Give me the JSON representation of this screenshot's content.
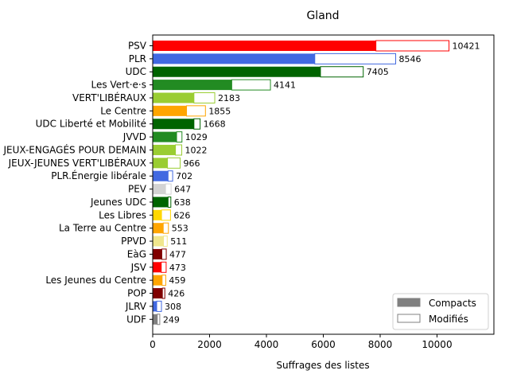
{
  "chart_data": {
    "type": "bar",
    "orientation": "horizontal",
    "stacked": true,
    "title": "Gland",
    "xlabel": "Suffrages des listes",
    "ylabel": "",
    "xlim": [
      0,
      12000
    ],
    "xticks": [
      0,
      2000,
      4000,
      6000,
      8000,
      10000
    ],
    "grid": false,
    "legend_position": "bottom-right",
    "legend": [
      {
        "name": "Compacts",
        "style": "filled",
        "color": "#808080"
      },
      {
        "name": "Modifiés",
        "style": "outline",
        "color": "#808080"
      }
    ],
    "categories": [
      "PSV",
      "PLR",
      "UDC",
      "Les Vert·e·s",
      "VERT'LIBÉRAUX",
      "Le Centre",
      "UDC Liberté et Mobilité",
      "JVVD",
      "JEUX-ENGAGÉS POUR DEMAIN",
      "JEUX-JEUNES VERT'LIBÉRAUX",
      "PLR.Énergie libérale",
      "PEV",
      "Jeunes UDC",
      "Les Libres",
      "La Terre au Centre",
      "PPVD",
      "EàG",
      "JSV",
      "Les Jeunes du Centre",
      "POP",
      "JLRV",
      "UDF"
    ],
    "compacts": [
      7850,
      5700,
      5900,
      2780,
      1450,
      1190,
      1450,
      840,
      800,
      520,
      540,
      450,
      540,
      310,
      370,
      380,
      320,
      300,
      330,
      340,
      140,
      160
    ],
    "totals": [
      10421,
      8546,
      7405,
      4141,
      2183,
      1855,
      1668,
      1029,
      1022,
      966,
      702,
      647,
      638,
      626,
      553,
      511,
      477,
      473,
      459,
      426,
      308,
      249
    ],
    "total_labels": [
      "10421",
      "8546",
      "7405",
      "4141",
      "2183",
      "1855",
      "1668",
      "1029",
      "1022",
      "966",
      "702",
      "647",
      "638",
      "626",
      "553",
      "511",
      "477",
      "473",
      "459",
      "426",
      "308",
      "249"
    ],
    "colors": [
      "#ff0000",
      "#4169e1",
      "#006400",
      "#228b22",
      "#9acd32",
      "#ffa500",
      "#006400",
      "#228b22",
      "#9acd32",
      "#9acd32",
      "#4169e1",
      "#d3d3d3",
      "#006400",
      "#ffd700",
      "#ffa500",
      "#f0e68c",
      "#800000",
      "#ff0000",
      "#ffa500",
      "#800000",
      "#4169e1",
      "#808080"
    ]
  }
}
